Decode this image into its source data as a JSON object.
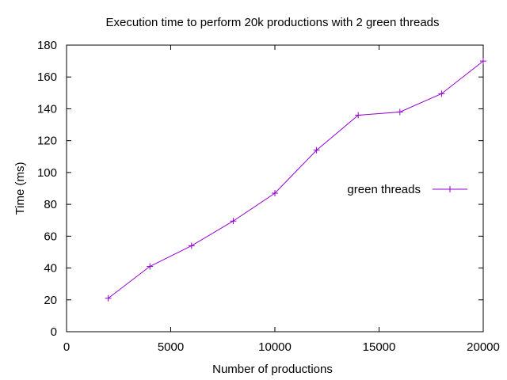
{
  "chart_data": {
    "type": "line",
    "title": "Execution time to perform 20k productions with 2 green threads",
    "xlabel": "Number of productions",
    "ylabel": "Time (ms)",
    "xlim": [
      0,
      20000
    ],
    "ylim": [
      0,
      180
    ],
    "x_ticks": [
      0,
      5000,
      10000,
      15000,
      20000
    ],
    "y_ticks": [
      0,
      20,
      40,
      60,
      80,
      100,
      120,
      140,
      160,
      180
    ],
    "grid": false,
    "legend_position": "right",
    "series": [
      {
        "name": "green threads",
        "color": "#9400d3",
        "marker": "plus",
        "x": [
          2000,
          4000,
          6000,
          8000,
          10000,
          12000,
          14000,
          16000,
          18000,
          20000
        ],
        "y": [
          21,
          41,
          54,
          69.5,
          87,
          114,
          136,
          138,
          149.5,
          170
        ]
      }
    ]
  }
}
